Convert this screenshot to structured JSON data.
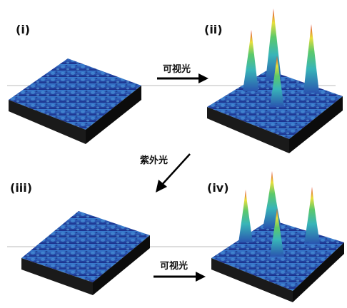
{
  "panels": [
    {
      "label": "(i)",
      "state": "flat"
    },
    {
      "label": "(ii)",
      "state": "peaks"
    },
    {
      "label": "(iii)",
      "state": "flat"
    },
    {
      "label": "(iv)",
      "state": "peaks"
    }
  ],
  "arrows": {
    "top": "可视光",
    "diagonal": "紫外光",
    "bottom": "可视光"
  },
  "colors": {
    "surface_low": "#1d2f8f",
    "surface_mid": "#2f6fc0",
    "peak_mid": "#3bbf9a",
    "peak_high": "#e8e040",
    "peak_top": "#e23a2a",
    "base_shadow": "#111111"
  }
}
